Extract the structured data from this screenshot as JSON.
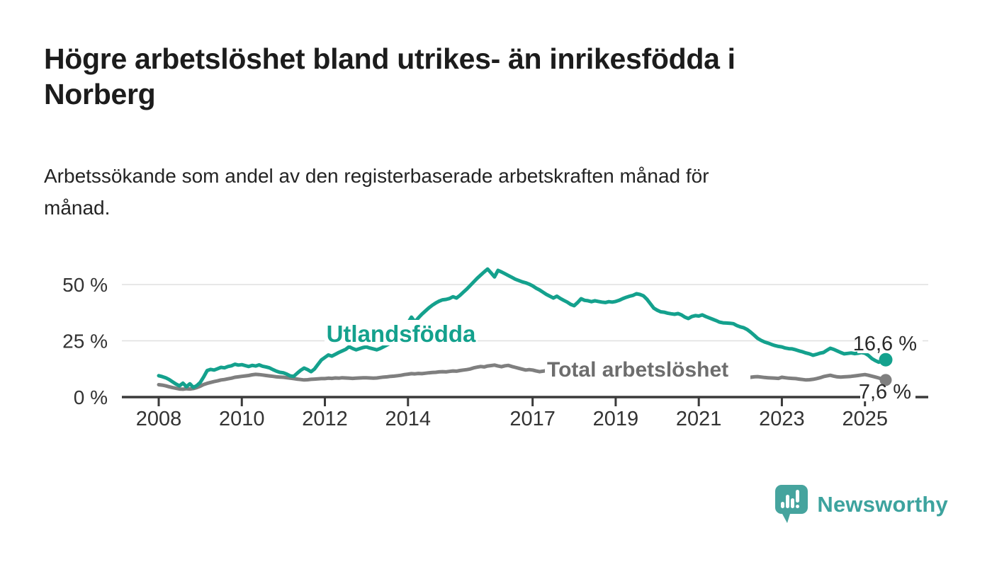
{
  "footer": {
    "brand": "Newsworthy"
  },
  "colors": {
    "series_foreign_born": "#14a18d",
    "series_total": "#7f7f7f",
    "series_total_label": "#6d6d6d",
    "axis_line": "#3a3a3a",
    "gridline": "#e0e0e0",
    "tick_text": "#333333",
    "value_label_text": "#2a2a2a",
    "brand_teal": "#46a49e"
  },
  "chart_data": {
    "type": "line",
    "title": "Högre arbetslöshet bland utrikes- än inrikesfödda i\nNorberg",
    "subtitle": "Arbetssökande som andel av den registerbaserade arbetskraften månad för\nmånad.",
    "unit": "%",
    "grid": "horizontal",
    "legend": "inline-labels",
    "x_interval": "monthly",
    "x_range": [
      2008.0,
      2025.5
    ],
    "x_tick_years": [
      2008,
      2010,
      2012,
      2014,
      2017,
      2019,
      2021,
      2023,
      2025
    ],
    "x_tick_labels": [
      "2008",
      "2010",
      "2012",
      "2014",
      "2017",
      "2019",
      "2021",
      "2023",
      "2025"
    ],
    "y_ticks": [
      {
        "value": 0,
        "label": "0 %"
      },
      {
        "value": 25,
        "label": "25 %"
      },
      {
        "value": 50,
        "label": "50 %"
      }
    ],
    "ylim": [
      0,
      60
    ],
    "series": [
      {
        "name": "Utlandsfödda",
        "color": "#14a18d",
        "end_value": 16.6,
        "end_label": "16,6 %",
        "values": [
          9.5,
          9.1,
          8.6,
          7.8,
          6.8,
          5.8,
          5.0,
          6.2,
          4.6,
          5.9,
          4.3,
          5.1,
          6.5,
          9.0,
          11.8,
          12.3,
          12.0,
          12.6,
          13.2,
          13.0,
          13.6,
          13.9,
          14.6,
          14.2,
          14.4,
          14.0,
          13.6,
          14.1,
          13.8,
          14.3,
          13.7,
          13.4,
          13.0,
          12.2,
          11.5,
          11.0,
          10.8,
          10.2,
          9.4,
          9.2,
          10.6,
          11.9,
          12.9,
          12.2,
          11.3,
          12.5,
          14.5,
          16.5,
          17.6,
          18.7,
          18.2,
          19.0,
          19.8,
          20.5,
          21.2,
          22.4,
          21.6,
          21.0,
          21.5,
          22.0,
          22.3,
          21.8,
          21.4,
          21.0,
          21.6,
          22.4,
          23.2,
          24.0,
          25.5,
          27.5,
          29.5,
          31.5,
          33.0,
          35.5,
          33.4,
          35.2,
          36.8,
          38.2,
          39.6,
          40.8,
          41.8,
          42.6,
          43.2,
          43.4,
          43.8,
          44.6,
          44.0,
          45.2,
          46.6,
          48.0,
          49.6,
          51.2,
          52.8,
          54.2,
          55.6,
          56.9,
          55.2,
          53.4,
          56.3,
          55.6,
          54.8,
          54.0,
          53.2,
          52.4,
          51.8,
          51.2,
          50.8,
          50.2,
          49.4,
          48.4,
          47.6,
          46.6,
          45.6,
          44.8,
          44.0,
          44.8,
          43.8,
          43.0,
          42.2,
          41.2,
          40.6,
          42.0,
          43.7,
          43.0,
          42.8,
          42.4,
          42.8,
          42.5,
          42.2,
          42.0,
          42.4,
          42.2,
          42.5,
          43.0,
          43.7,
          44.3,
          44.8,
          45.2,
          45.9,
          45.6,
          45.0,
          43.5,
          41.5,
          39.5,
          38.6,
          37.9,
          37.7,
          37.3,
          37.0,
          36.8,
          37.1,
          36.5,
          35.5,
          34.9,
          35.8,
          36.2,
          36.0,
          36.5,
          35.8,
          35.2,
          34.6,
          34.0,
          33.3,
          33.0,
          32.9,
          32.8,
          32.6,
          31.8,
          31.2,
          30.8,
          30.0,
          28.8,
          27.5,
          26.1,
          25.2,
          24.5,
          24.0,
          23.4,
          22.9,
          22.5,
          22.3,
          21.8,
          21.5,
          21.4,
          21.0,
          20.5,
          20.1,
          19.6,
          19.2,
          18.6,
          19.0,
          19.5,
          19.8,
          20.8,
          21.7,
          21.2,
          20.5,
          19.8,
          19.2,
          19.4,
          19.6,
          19.3,
          19.5,
          19.8,
          19.5,
          18.5,
          17.1,
          16.2,
          15.5,
          16.2,
          16.6
        ]
      },
      {
        "name": "Total arbetslöshet",
        "color": "#7f7f7f",
        "end_value": 7.6,
        "end_label": "7,6 %",
        "values": [
          5.5,
          5.3,
          5.0,
          4.6,
          4.2,
          3.9,
          3.6,
          3.5,
          3.7,
          3.6,
          3.8,
          4.2,
          4.8,
          5.6,
          6.1,
          6.5,
          6.9,
          7.2,
          7.6,
          7.8,
          8.1,
          8.4,
          8.8,
          9.0,
          9.2,
          9.4,
          9.6,
          9.9,
          10.1,
          10.0,
          9.8,
          9.6,
          9.4,
          9.2,
          9.0,
          8.9,
          8.8,
          8.6,
          8.4,
          8.2,
          8.0,
          7.8,
          7.6,
          7.7,
          7.9,
          8.0,
          8.1,
          8.2,
          8.2,
          8.4,
          8.3,
          8.5,
          8.4,
          8.6,
          8.5,
          8.4,
          8.3,
          8.4,
          8.5,
          8.6,
          8.6,
          8.5,
          8.4,
          8.5,
          8.7,
          8.9,
          9.0,
          9.2,
          9.3,
          9.5,
          9.7,
          10.0,
          10.2,
          10.4,
          10.3,
          10.5,
          10.4,
          10.6,
          10.8,
          10.9,
          11.0,
          11.2,
          11.3,
          11.2,
          11.4,
          11.6,
          11.5,
          11.8,
          12.0,
          12.2,
          12.5,
          13.0,
          13.3,
          13.6,
          13.4,
          13.8,
          14.0,
          14.2,
          13.8,
          13.5,
          13.9,
          14.1,
          13.6,
          13.2,
          12.8,
          12.4,
          12.0,
          12.2,
          12.0,
          11.6,
          11.3,
          11.5,
          11.8,
          11.4,
          11.0,
          10.7,
          10.4,
          10.2,
          10.0,
          9.8,
          9.6,
          9.4,
          9.2,
          9.1,
          9.0,
          8.9,
          8.8,
          8.7,
          8.8,
          8.7,
          8.6,
          8.5,
          8.5,
          8.6,
          8.5,
          8.6,
          8.7,
          8.6,
          8.7,
          8.8,
          8.7,
          8.8,
          8.9,
          9.0,
          9.2,
          9.4,
          9.8,
          10.2,
          10.4,
          10.5,
          10.3,
          10.1,
          9.9,
          9.7,
          9.5,
          9.4,
          9.3,
          9.2,
          9.1,
          9.0,
          8.9,
          8.8,
          8.7,
          8.6,
          8.6,
          8.5,
          8.5,
          8.4,
          8.4,
          8.5,
          8.6,
          8.8,
          9.0,
          9.1,
          8.9,
          8.7,
          8.6,
          8.5,
          8.4,
          8.3,
          8.8,
          8.6,
          8.4,
          8.3,
          8.2,
          8.0,
          7.8,
          7.6,
          7.7,
          7.9,
          8.2,
          8.6,
          9.1,
          9.4,
          9.7,
          9.3,
          9.0,
          8.9,
          9.0,
          9.1,
          9.2,
          9.4,
          9.6,
          9.8,
          10.0,
          9.7,
          9.3,
          8.9,
          8.5,
          8.0,
          7.6
        ]
      }
    ]
  }
}
